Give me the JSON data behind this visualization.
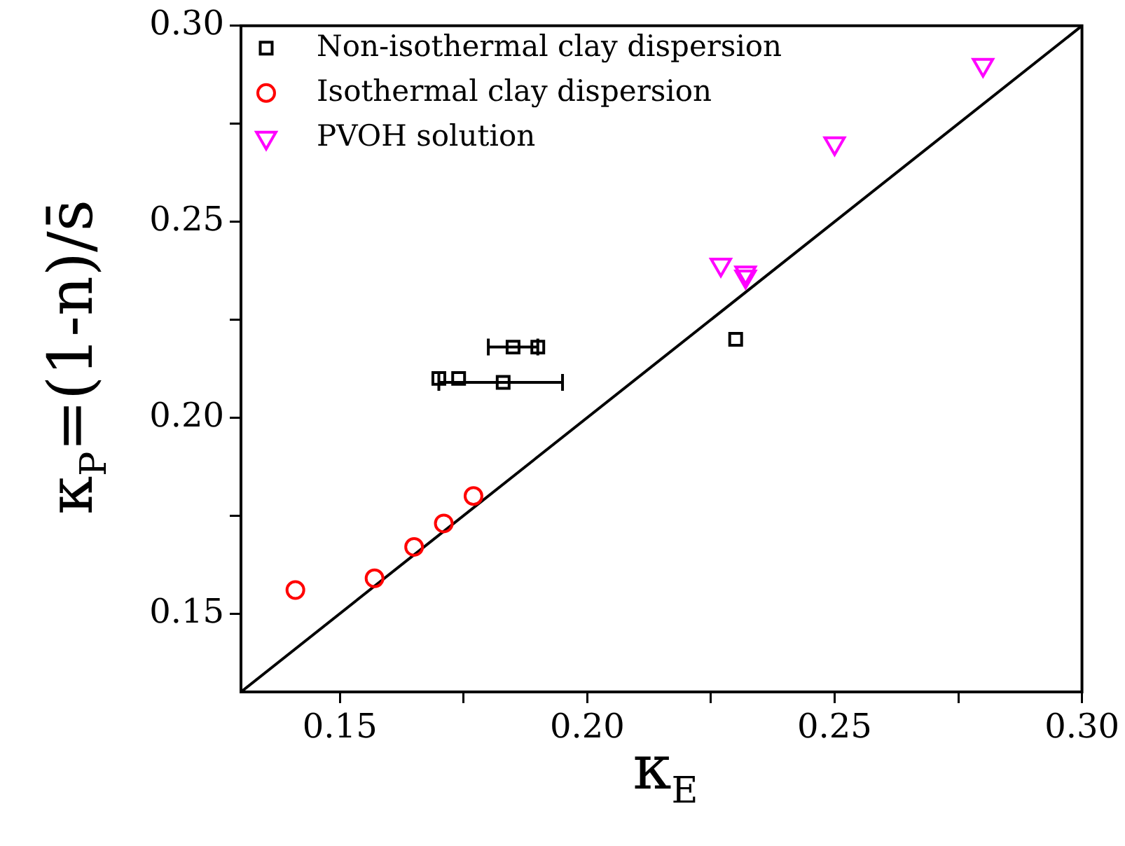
{
  "chart_data": {
    "type": "scatter",
    "xlabel": "κ$_{E}$",
    "ylabel": "κ$_{P}$=(1-n)/s̄",
    "xlim": [
      0.13,
      0.3
    ],
    "ylim": [
      0.13,
      0.3
    ],
    "xticks": [
      0.15,
      {
        "value": 0.175,
        "label": null
      },
      {
        "value": 0.2,
        "label": "0.20"
      },
      {
        "value": 0.225,
        "label": null
      },
      0.25,
      {
        "value": 0.275,
        "label": null
      },
      {
        "value": 0.3,
        "label": "0.30"
      }
    ],
    "yticks": [
      0.15,
      {
        "value": 0.175,
        "label": null
      },
      {
        "value": 0.2,
        "label": "0.20"
      },
      {
        "value": 0.225,
        "label": null
      },
      0.25,
      {
        "value": 0.275,
        "label": null
      },
      {
        "value": 0.3,
        "label": "0.30"
      }
    ],
    "grid": false,
    "legend": "top left",
    "series": [
      {
        "name": "Non-isothermal clay dispersion",
        "color": "#000000",
        "marker": "square",
        "x": [
          0.17,
          0.174,
          0.183,
          0.185,
          0.19,
          0.23
        ],
        "values": [
          0.21,
          0.21,
          0.209,
          0.218,
          0.218,
          0.22
        ],
        "xerrors": [
          null,
          null,
          [
            0.17,
            0.195
          ],
          [
            0.18,
            0.19
          ],
          null,
          null
        ]
      },
      {
        "name": "Isothermal clay dispersion",
        "color": "#ff0000",
        "marker": "circle",
        "x": [
          0.141,
          0.157,
          0.165,
          0.171,
          0.177
        ],
        "values": [
          0.156,
          0.159,
          0.167,
          0.173,
          0.18
        ]
      },
      {
        "name": "PVOH solution",
        "color": "#ff00ff",
        "marker": "triangle",
        "x": [
          0.227,
          0.232,
          0.232,
          0.25,
          0.28
        ],
        "values": [
          0.239,
          0.237,
          0.236,
          0.27,
          0.29
        ]
      },
      {
        "type": "line",
        "color": "#000000",
        "marker": "none",
        "line_style": "solid",
        "x": [
          0.13,
          0.3
        ],
        "values": [
          0.13,
          0.3
        ]
      }
    ]
  }
}
